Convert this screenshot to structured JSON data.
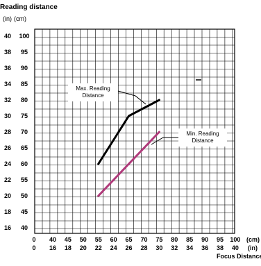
{
  "chart_data": {
    "type": "line",
    "title": "Reading distance",
    "y_units": [
      "(in)",
      "(cm)"
    ],
    "x_units": [
      "(cm)",
      "(in)"
    ],
    "xlabel": "Focus Distance",
    "ylabel": "",
    "xlim": [
      50,
      100
    ],
    "ylim": [
      35,
      100
    ],
    "x_ticks_cm": [
      "0",
      "40",
      "45",
      "50",
      "55",
      "60",
      "65",
      "70",
      "75",
      "80",
      "85",
      "90",
      "95",
      "100"
    ],
    "x_ticks_in": [
      "0",
      "16",
      "18",
      "20",
      "22",
      "24",
      "26",
      "28",
      "30",
      "32",
      "34",
      "36",
      "38",
      "40"
    ],
    "y_ticks_cm": [
      "100",
      "95",
      "90",
      "85",
      "80",
      "75",
      "70",
      "65",
      "60",
      "55",
      "50",
      "45",
      "40"
    ],
    "y_ticks_in": [
      "40",
      "38",
      "36",
      "34",
      "32",
      "30",
      "28",
      "26",
      "24",
      "22",
      "20",
      "18",
      "16"
    ],
    "grid": true,
    "series": [
      {
        "name": "Max. Reading Distance",
        "color": "#000000",
        "x": [
          55,
          65,
          75
        ],
        "y": [
          60,
          75,
          80
        ]
      },
      {
        "name": "Min. Reading Distance",
        "color": "#b03a7a",
        "x": [
          55,
          75
        ],
        "y": [
          50,
          70
        ]
      }
    ],
    "annotations": [
      {
        "text": [
          "Max. Reading",
          "Distance"
        ]
      },
      {
        "text": [
          "Min. Reading",
          "Distance"
        ]
      }
    ]
  }
}
